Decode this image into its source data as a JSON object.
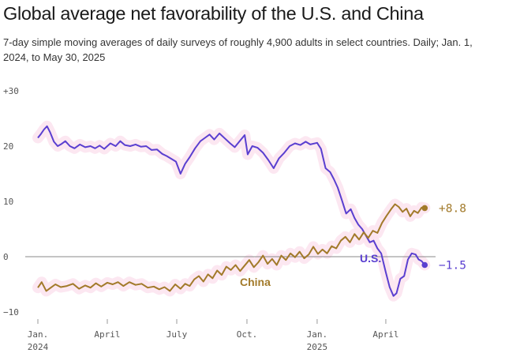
{
  "title": "Global average net favorability of the U.S. and China",
  "subtitle": "7-day simple moving averages of daily surveys of roughly 4,900 adults in select countries. Daily; Jan. 1, 2024, to May 30, 2025",
  "colors": {
    "us": "#5a3fd0",
    "china": "#a27a2a",
    "highlight": "#fbe3ee",
    "zero_line": "#8a8a8a",
    "axis": "#cccccc"
  },
  "chart_data": {
    "type": "line",
    "title": "Global average net favorability of the U.S. and China",
    "subtitle": "7-day simple moving averages of daily surveys of roughly 4,900 adults in select countries. Daily; Jan. 1, 2024, to May 30, 2025",
    "xlabel": "",
    "ylabel": "",
    "ylim": [
      -10,
      30
    ],
    "xlim": [
      "2024-01-01",
      "2025-05-30"
    ],
    "yticks": [
      {
        "value": 30,
        "label": "+30"
      },
      {
        "value": 20,
        "label": "20"
      },
      {
        "value": 10,
        "label": "10"
      },
      {
        "value": 0,
        "label": "0"
      },
      {
        "value": -10,
        "label": "−10"
      }
    ],
    "xticks": [
      {
        "date": "2024-01-01",
        "label": "Jan.",
        "sublabel": "2024"
      },
      {
        "date": "2024-04-01",
        "label": "April",
        "sublabel": ""
      },
      {
        "date": "2024-07-01",
        "label": "July",
        "sublabel": ""
      },
      {
        "date": "2024-10-01",
        "label": "Oct.",
        "sublabel": ""
      },
      {
        "date": "2025-01-01",
        "label": "Jan.",
        "sublabel": "2025"
      },
      {
        "date": "2025-04-01",
        "label": "April",
        "sublabel": ""
      }
    ],
    "grid": false,
    "legend": "direct labels",
    "series": [
      {
        "name": "U.S.",
        "color": "#5a3fd0",
        "end_label": "−1.5",
        "points": [
          [
            "2024-01-01",
            21.5
          ],
          [
            "2024-01-05",
            22.2
          ],
          [
            "2024-01-09",
            23.0
          ],
          [
            "2024-01-13",
            23.6
          ],
          [
            "2024-01-17",
            22.5
          ],
          [
            "2024-01-22",
            20.8
          ],
          [
            "2024-01-27",
            20.0
          ],
          [
            "2024-02-01",
            20.4
          ],
          [
            "2024-02-06",
            20.9
          ],
          [
            "2024-02-12",
            20.0
          ],
          [
            "2024-02-18",
            19.6
          ],
          [
            "2024-02-25",
            20.3
          ],
          [
            "2024-03-03",
            19.8
          ],
          [
            "2024-03-10",
            20.0
          ],
          [
            "2024-03-16",
            19.6
          ],
          [
            "2024-03-22",
            20.1
          ],
          [
            "2024-03-28",
            19.5
          ],
          [
            "2024-04-05",
            20.5
          ],
          [
            "2024-04-12",
            20.0
          ],
          [
            "2024-04-18",
            20.9
          ],
          [
            "2024-04-24",
            20.2
          ],
          [
            "2024-05-01",
            20.0
          ],
          [
            "2024-05-08",
            20.3
          ],
          [
            "2024-05-15",
            19.9
          ],
          [
            "2024-05-22",
            20.0
          ],
          [
            "2024-05-29",
            19.3
          ],
          [
            "2024-06-05",
            19.4
          ],
          [
            "2024-06-12",
            18.6
          ],
          [
            "2024-06-18",
            18.2
          ],
          [
            "2024-06-24",
            17.7
          ],
          [
            "2024-06-30",
            17.2
          ],
          [
            "2024-07-06",
            15.0
          ],
          [
            "2024-07-12",
            16.8
          ],
          [
            "2024-07-18",
            18.0
          ],
          [
            "2024-07-25",
            19.6
          ],
          [
            "2024-08-01",
            20.9
          ],
          [
            "2024-08-07",
            21.5
          ],
          [
            "2024-08-13",
            22.1
          ],
          [
            "2024-08-19",
            21.2
          ],
          [
            "2024-08-26",
            22.3
          ],
          [
            "2024-09-02",
            21.4
          ],
          [
            "2024-09-09",
            20.5
          ],
          [
            "2024-09-15",
            19.8
          ],
          [
            "2024-09-22",
            21.0
          ],
          [
            "2024-09-28",
            22.0
          ],
          [
            "2024-10-02",
            18.5
          ],
          [
            "2024-10-08",
            20.0
          ],
          [
            "2024-10-15",
            19.7
          ],
          [
            "2024-10-22",
            18.8
          ],
          [
            "2024-10-29",
            17.5
          ],
          [
            "2024-11-05",
            16.0
          ],
          [
            "2024-11-12",
            17.8
          ],
          [
            "2024-11-19",
            18.8
          ],
          [
            "2024-11-26",
            20.0
          ],
          [
            "2024-12-03",
            20.5
          ],
          [
            "2024-12-10",
            20.2
          ],
          [
            "2024-12-17",
            20.8
          ],
          [
            "2024-12-23",
            20.3
          ],
          [
            "2025-01-01",
            20.6
          ],
          [
            "2025-01-06",
            19.5
          ],
          [
            "2025-01-12",
            16.0
          ],
          [
            "2025-01-18",
            15.3
          ],
          [
            "2025-01-23",
            14.0
          ],
          [
            "2025-01-28",
            12.5
          ],
          [
            "2025-02-03",
            10.0
          ],
          [
            "2025-02-08",
            7.8
          ],
          [
            "2025-02-14",
            8.6
          ],
          [
            "2025-02-19",
            7.0
          ],
          [
            "2025-02-24",
            5.8
          ],
          [
            "2025-03-01",
            5.0
          ],
          [
            "2025-03-06",
            3.8
          ],
          [
            "2025-03-11",
            2.6
          ],
          [
            "2025-03-16",
            2.9
          ],
          [
            "2025-03-21",
            1.5
          ],
          [
            "2025-03-26",
            0.6
          ],
          [
            "2025-04-01",
            -2.8
          ],
          [
            "2025-04-06",
            -5.5
          ],
          [
            "2025-04-11",
            -7.1
          ],
          [
            "2025-04-15",
            -6.6
          ],
          [
            "2025-04-20",
            -4.0
          ],
          [
            "2025-04-25",
            -3.5
          ],
          [
            "2025-04-30",
            -0.5
          ],
          [
            "2025-05-05",
            0.6
          ],
          [
            "2025-05-10",
            0.4
          ],
          [
            "2025-05-14",
            -0.5
          ],
          [
            "2025-05-18",
            -0.8
          ],
          [
            "2025-05-22",
            -1.5
          ]
        ]
      },
      {
        "name": "China",
        "color": "#a27a2a",
        "end_label": "+8.8",
        "points": [
          [
            "2024-01-01",
            -5.6
          ],
          [
            "2024-01-06",
            -4.6
          ],
          [
            "2024-01-12",
            -6.2
          ],
          [
            "2024-01-18",
            -5.6
          ],
          [
            "2024-01-24",
            -5.0
          ],
          [
            "2024-01-31",
            -5.5
          ],
          [
            "2024-02-08",
            -5.3
          ],
          [
            "2024-02-16",
            -4.9
          ],
          [
            "2024-02-24",
            -5.8
          ],
          [
            "2024-03-03",
            -5.2
          ],
          [
            "2024-03-10",
            -5.6
          ],
          [
            "2024-03-17",
            -4.8
          ],
          [
            "2024-03-24",
            -5.4
          ],
          [
            "2024-04-01",
            -4.7
          ],
          [
            "2024-04-08",
            -5.0
          ],
          [
            "2024-04-15",
            -4.6
          ],
          [
            "2024-04-22",
            -5.3
          ],
          [
            "2024-04-30",
            -4.6
          ],
          [
            "2024-05-08",
            -5.1
          ],
          [
            "2024-05-16",
            -4.9
          ],
          [
            "2024-05-24",
            -5.6
          ],
          [
            "2024-06-01",
            -5.4
          ],
          [
            "2024-06-08",
            -5.9
          ],
          [
            "2024-06-15",
            -5.5
          ],
          [
            "2024-06-22",
            -6.2
          ],
          [
            "2024-06-29",
            -5.0
          ],
          [
            "2024-07-06",
            -5.8
          ],
          [
            "2024-07-12",
            -4.9
          ],
          [
            "2024-07-18",
            -5.3
          ],
          [
            "2024-07-24",
            -4.1
          ],
          [
            "2024-07-30",
            -3.5
          ],
          [
            "2024-08-05",
            -4.5
          ],
          [
            "2024-08-11",
            -3.2
          ],
          [
            "2024-08-17",
            -3.9
          ],
          [
            "2024-08-23",
            -2.5
          ],
          [
            "2024-08-29",
            -3.3
          ],
          [
            "2024-09-04",
            -1.8
          ],
          [
            "2024-09-10",
            -2.4
          ],
          [
            "2024-09-16",
            -1.5
          ],
          [
            "2024-09-22",
            -2.6
          ],
          [
            "2024-09-28",
            -1.6
          ],
          [
            "2024-10-04",
            -0.6
          ],
          [
            "2024-10-10",
            -1.9
          ],
          [
            "2024-10-16",
            -1.0
          ],
          [
            "2024-10-22",
            0.2
          ],
          [
            "2024-10-28",
            -1.3
          ],
          [
            "2024-11-03",
            -0.4
          ],
          [
            "2024-11-09",
            -1.5
          ],
          [
            "2024-11-15",
            0.2
          ],
          [
            "2024-11-21",
            -0.6
          ],
          [
            "2024-11-27",
            0.6
          ],
          [
            "2024-12-03",
            -0.1
          ],
          [
            "2024-12-09",
            0.9
          ],
          [
            "2024-12-15",
            -0.3
          ],
          [
            "2024-12-21",
            0.4
          ],
          [
            "2024-12-27",
            1.8
          ],
          [
            "2025-01-02",
            0.5
          ],
          [
            "2025-01-08",
            1.3
          ],
          [
            "2025-01-14",
            0.6
          ],
          [
            "2025-01-20",
            1.9
          ],
          [
            "2025-01-26",
            1.5
          ],
          [
            "2025-02-01",
            2.9
          ],
          [
            "2025-02-07",
            3.6
          ],
          [
            "2025-02-13",
            2.6
          ],
          [
            "2025-02-19",
            4.1
          ],
          [
            "2025-02-25",
            3.1
          ],
          [
            "2025-03-03",
            4.4
          ],
          [
            "2025-03-09",
            3.4
          ],
          [
            "2025-03-15",
            4.7
          ],
          [
            "2025-03-21",
            4.3
          ],
          [
            "2025-03-27",
            6.1
          ],
          [
            "2025-04-02",
            7.4
          ],
          [
            "2025-04-08",
            8.6
          ],
          [
            "2025-04-13",
            9.5
          ],
          [
            "2025-04-18",
            9.0
          ],
          [
            "2025-04-23",
            8.1
          ],
          [
            "2025-04-28",
            8.7
          ],
          [
            "2025-05-03",
            7.3
          ],
          [
            "2025-05-08",
            8.3
          ],
          [
            "2025-05-13",
            7.9
          ],
          [
            "2025-05-18",
            8.9
          ],
          [
            "2025-05-22",
            8.8
          ]
        ]
      }
    ]
  }
}
